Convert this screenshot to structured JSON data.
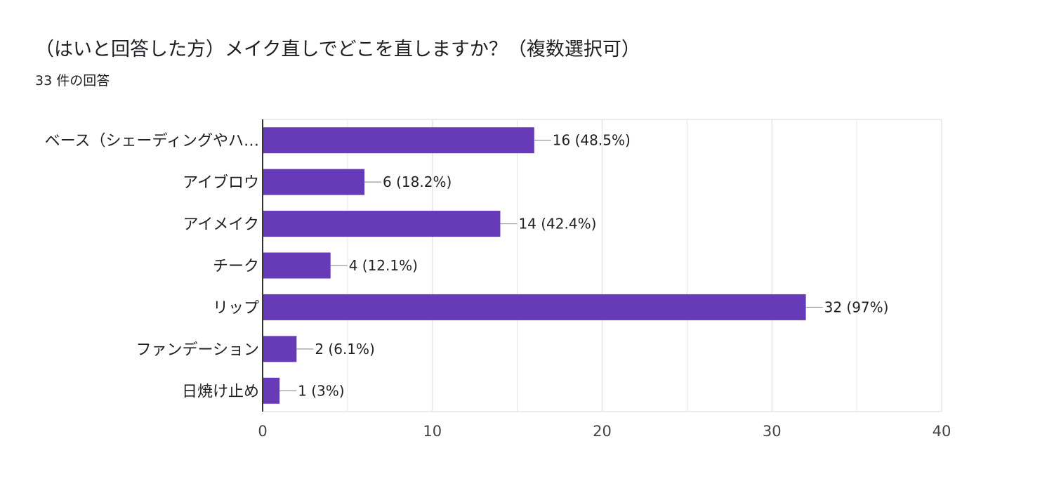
{
  "header": {
    "title": "（はいと回答した方）メイク直しでどこを直しますか？（複数選択可）",
    "response_count": "33 件の回答"
  },
  "colors": {
    "bar": "#673ab7",
    "grid": "#e6e6e6",
    "axis": "#333333",
    "connector": "#999999",
    "text": "#202124"
  },
  "chart_data": {
    "type": "bar",
    "orientation": "horizontal",
    "categories": [
      "ベース（シェーディングやハ…",
      "アイブロウ",
      "アイメイク",
      "チーク",
      "リップ",
      "ファンデーション",
      "日焼け止め"
    ],
    "values": [
      16,
      6,
      14,
      4,
      32,
      2,
      1
    ],
    "data_labels": [
      "16 (48.5%)",
      "6 (18.2%)",
      "14 (42.4%)",
      "4 (12.1%)",
      "32 (97%)",
      "2 (6.1%)",
      "1 (3%)"
    ],
    "xlim": [
      0,
      40
    ],
    "x_ticks": [
      0,
      10,
      20,
      30,
      40
    ],
    "grid": true,
    "legend": "none"
  }
}
